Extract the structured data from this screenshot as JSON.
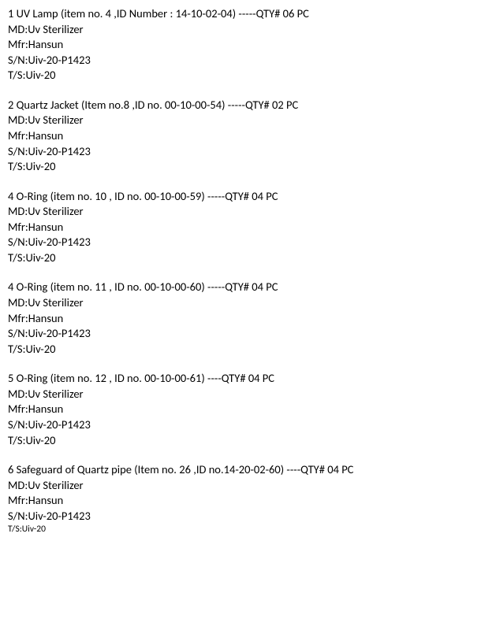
{
  "font": {
    "family": "Calibri",
    "size_pt": 11,
    "small_size_pt": 9,
    "color": "#000000"
  },
  "background_color": "#ffffff",
  "items": [
    {
      "header": "1 UV Lamp (item no. 4 ,ID Number : 14-10-02-04) -----QTY# 06 PC",
      "md": "MD:Uv Sterilizer",
      "mfr": "Mfr:Hansun",
      "sn": "S/N:Uiv-20-P1423",
      "ts": "T/S:Uiv-20",
      "ts_small": false
    },
    {
      "header": "2 Quartz Jacket (Item no.8 ,ID no. 00-10-00-54) -----QTY# 02 PC",
      "md": "MD:Uv Sterilizer",
      "mfr": "Mfr:Hansun",
      "sn": "S/N:Uiv-20-P1423",
      "ts": "T/S:Uiv-20",
      "ts_small": false
    },
    {
      "header": "4 O-Ring (item no. 10 , ID no. 00-10-00-59) -----QTY# 04 PC",
      "md": "MD:Uv Sterilizer",
      "mfr": "Mfr:Hansun",
      "sn": "S/N:Uiv-20-P1423",
      "ts": "T/S:Uiv-20",
      "ts_small": false
    },
    {
      "header": "4 O-Ring (item no. 11 , ID no. 00-10-00-60) -----QTY# 04 PC",
      "md": "MD:Uv Sterilizer",
      "mfr": "Mfr:Hansun",
      "sn": "S/N:Uiv-20-P1423",
      "ts": "T/S:Uiv-20",
      "ts_small": false
    },
    {
      "header": "5 O-Ring (item no. 12 , ID no. 00-10-00-61) ----QTY# 04 PC",
      "md": "MD:Uv Sterilizer",
      "mfr": "Mfr:Hansun",
      "sn": "S/N:Uiv-20-P1423",
      "ts": "T/S:Uiv-20",
      "ts_small": false
    },
    {
      "header": "6 Safeguard of Quartz pipe (Item no. 26 ,ID no.14-20-02-60) ----QTY# 04 PC",
      "md": "MD:Uv Sterilizer",
      "mfr": "Mfr:Hansun",
      "sn": "S/N:Uiv-20-P1423",
      "ts": "T/S:Uiv-20",
      "ts_small": true
    }
  ]
}
